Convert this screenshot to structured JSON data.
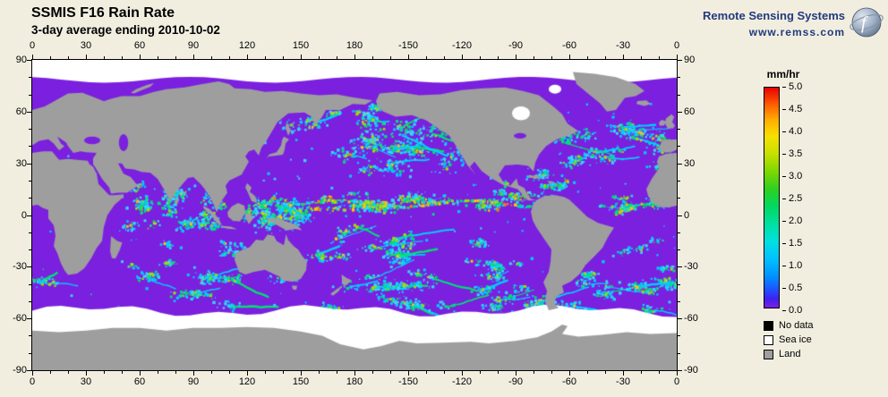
{
  "header": {
    "title": "SSMIS F16 Rain Rate",
    "subtitle": "3-day average ending 2010-10-02"
  },
  "branding": {
    "name": "Remote Sensing Systems",
    "url": "www.remss.com"
  },
  "axes": {
    "lon_labels": [
      "0",
      "30",
      "60",
      "90",
      "120",
      "150",
      "180",
      "-150",
      "-120",
      "-90",
      "-60",
      "-30",
      "0"
    ],
    "lat_labels": [
      "90",
      "60",
      "30",
      "0",
      "-30",
      "-60",
      "-90"
    ]
  },
  "colorbar": {
    "title": "mm/hr",
    "min": 0.0,
    "max": 5.0,
    "tick_labels": [
      "5.0",
      "4.5",
      "4.0",
      "3.5",
      "3.0",
      "2.5",
      "2.0",
      "1.5",
      "1.0",
      "0.5",
      "0.0"
    ],
    "gradient_stops": [
      [
        0,
        "#7a20e0"
      ],
      [
        4,
        "#4020f0"
      ],
      [
        8,
        "#2050ff"
      ],
      [
        14,
        "#0090ff"
      ],
      [
        22,
        "#00c0ff"
      ],
      [
        30,
        "#00e0e0"
      ],
      [
        38,
        "#00e0a0"
      ],
      [
        46,
        "#00d860"
      ],
      [
        54,
        "#30d020"
      ],
      [
        62,
        "#80d800"
      ],
      [
        70,
        "#c8e000"
      ],
      [
        78,
        "#f8e000"
      ],
      [
        85,
        "#ffb000"
      ],
      [
        92,
        "#ff6000"
      ],
      [
        100,
        "#e80000"
      ]
    ]
  },
  "legend": {
    "items": [
      {
        "label": "No data",
        "color": "#000000"
      },
      {
        "label": "Sea ice",
        "color": "#ffffff"
      },
      {
        "label": "Land",
        "color": "#9e9e9e"
      }
    ]
  },
  "map_colors": {
    "ocean": "#7b20df",
    "land": "#9e9e9e",
    "sea_ice": "#ffffff",
    "background": "#f1eee0",
    "rain_palette": [
      "#35d8ff",
      "#00cfff",
      "#00e070",
      "#a0e000",
      "#ffc800",
      "#ff8000"
    ]
  }
}
